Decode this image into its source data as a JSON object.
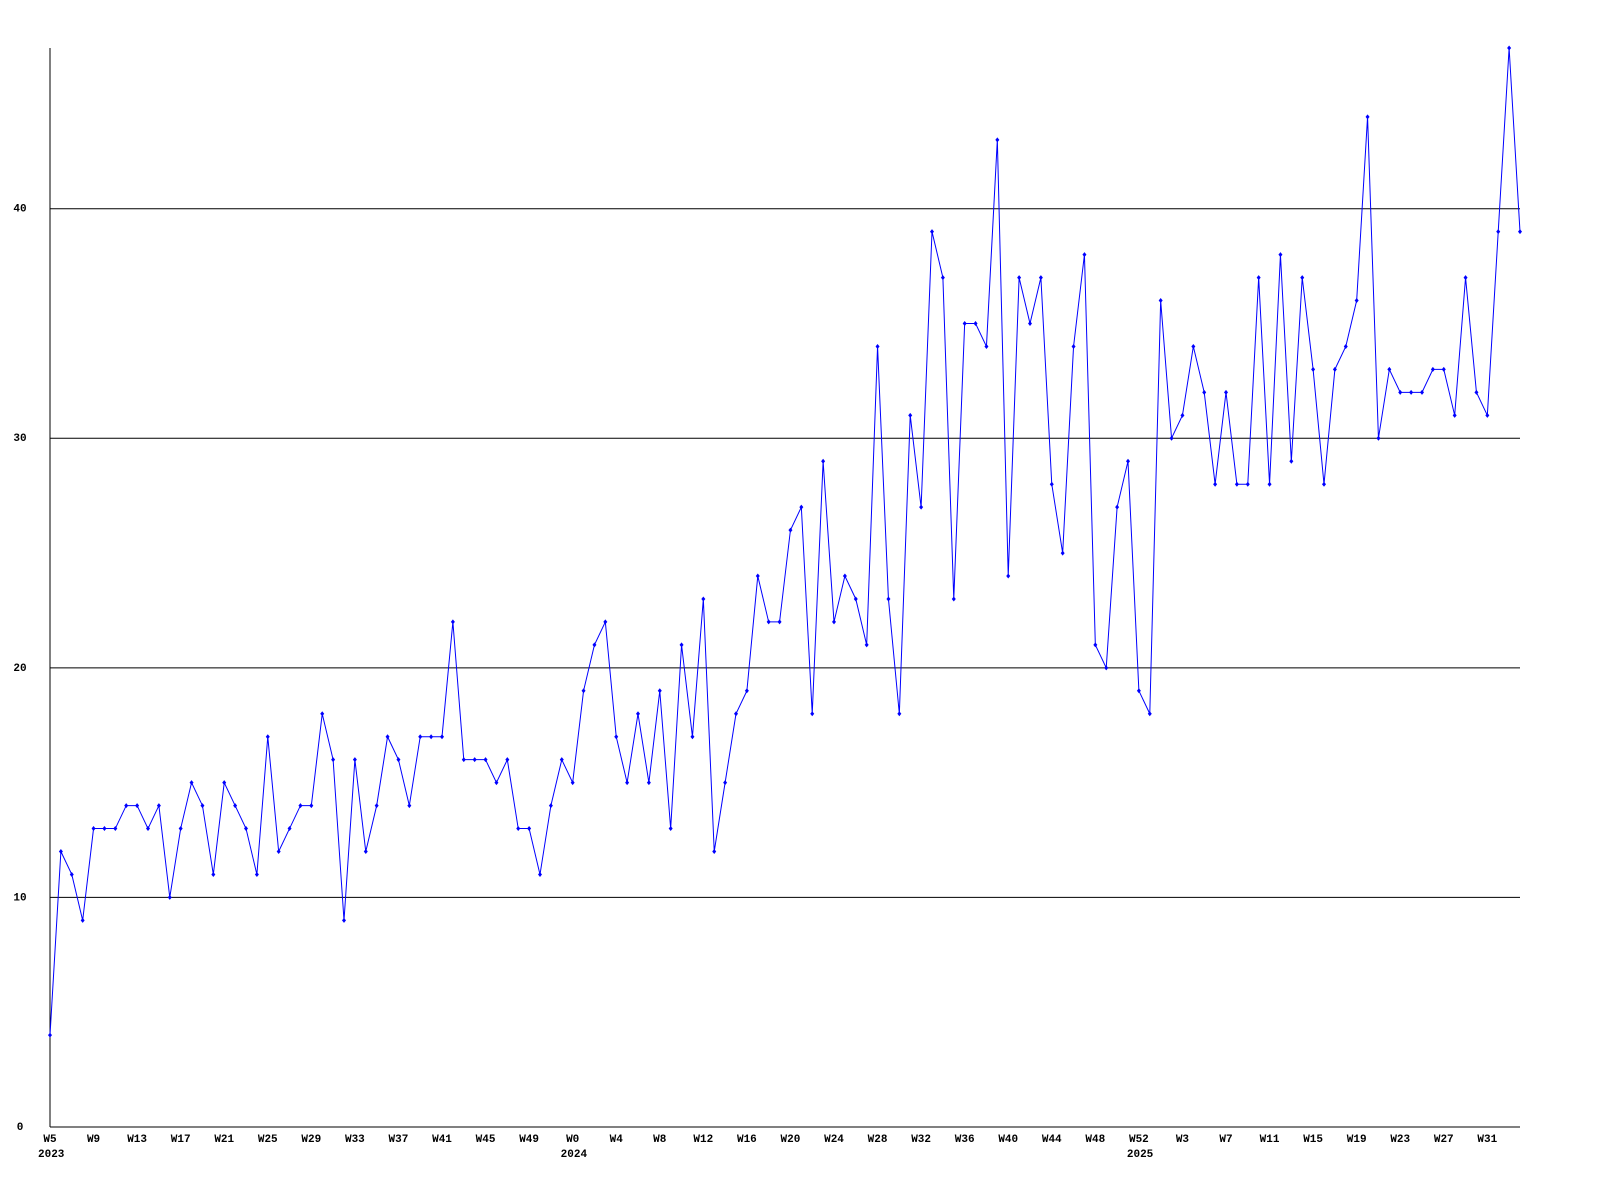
{
  "chart_data": {
    "type": "line",
    "categories": [
      "W5",
      null,
      null,
      null,
      "W9",
      null,
      null,
      null,
      "W13",
      null,
      null,
      null,
      "W17",
      null,
      null,
      null,
      "W21",
      null,
      null,
      null,
      "W25",
      null,
      null,
      null,
      "W29",
      null,
      null,
      null,
      "W33",
      null,
      null,
      null,
      "W37",
      null,
      null,
      null,
      "W41",
      null,
      null,
      null,
      "W45",
      null,
      null,
      null,
      "W49",
      null,
      null,
      null,
      "W0",
      null,
      null,
      null,
      "W4",
      null,
      null,
      null,
      "W8",
      null,
      null,
      null,
      "W12",
      null,
      null,
      null,
      "W16",
      null,
      null,
      null,
      "W20",
      null,
      null,
      null,
      "W24",
      null,
      null,
      null,
      "W28",
      null,
      null,
      null,
      "W32",
      null,
      null,
      null,
      "W36",
      null,
      null,
      null,
      "W40",
      null,
      null,
      null,
      "W44",
      null,
      null,
      null,
      "W48",
      null,
      null,
      null,
      "W52",
      null,
      null,
      null,
      "W3",
      null,
      null,
      null,
      "W7",
      null,
      null,
      null,
      "W11",
      null,
      null,
      null,
      "W15",
      null,
      null,
      null,
      "W19",
      null,
      null,
      null,
      "W23",
      null,
      null,
      null,
      "W27",
      null,
      null,
      null,
      "W31",
      null,
      null,
      null
    ],
    "year_labels": [
      {
        "index": 0,
        "label": "2023"
      },
      {
        "index": 48,
        "label": "2024"
      },
      {
        "index": 100,
        "label": "2025"
      }
    ],
    "series": [
      {
        "color": "#0000ff",
        "values": [
          4,
          12,
          11,
          9,
          13,
          13,
          13,
          14,
          14,
          13,
          14,
          10,
          13,
          15,
          14,
          11,
          15,
          14,
          13,
          11,
          17,
          12,
          13,
          14,
          14,
          18,
          16,
          9,
          16,
          12,
          14,
          17,
          16,
          14,
          17,
          17,
          17,
          22,
          16,
          16,
          16,
          15,
          16,
          13,
          13,
          11,
          14,
          16,
          15,
          19,
          21,
          22,
          17,
          15,
          18,
          15,
          19,
          13,
          21,
          17,
          23,
          12,
          15,
          18,
          19,
          24,
          22,
          22,
          26,
          27,
          18,
          29,
          22,
          24,
          23,
          21,
          34,
          23,
          18,
          31,
          27,
          39,
          37,
          23,
          35,
          35,
          34,
          43,
          24,
          37,
          35,
          37,
          28,
          25,
          34,
          38,
          21,
          20,
          27,
          29,
          19,
          18,
          36,
          30,
          31,
          34,
          32,
          28,
          32,
          28,
          28,
          37,
          28,
          38,
          29,
          37,
          33,
          28,
          33,
          34,
          36,
          44,
          30,
          33,
          32,
          32,
          32,
          33,
          33,
          31,
          37,
          32,
          31,
          39,
          47,
          39
        ]
      }
    ],
    "ylim": [
      0,
      47
    ],
    "yticks": [
      0,
      10,
      20,
      30,
      40
    ],
    "grid": true,
    "grid_color": "#000000"
  }
}
